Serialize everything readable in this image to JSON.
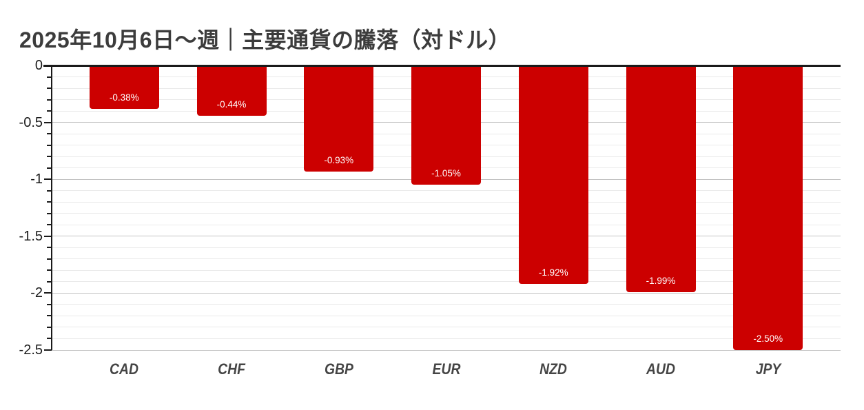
{
  "page": {
    "background": "#ffffff"
  },
  "chart_data": {
    "type": "bar",
    "title": "2025年10月6日～週｜主要通貨の騰落（対ドル）",
    "categories": [
      "CAD",
      "CHF",
      "GBP",
      "EUR",
      "NZD",
      "AUD",
      "JPY"
    ],
    "values": [
      -0.38,
      -0.44,
      -0.93,
      -1.05,
      -1.92,
      -1.99,
      -2.5
    ],
    "bar_labels": [
      "-0.38%",
      "-0.44%",
      "-0.93%",
      "-1.05%",
      "-1.92%",
      "-1.99%",
      "-2.50%"
    ],
    "xlabel": "",
    "ylabel": "",
    "ylim": [
      -2.5,
      0
    ],
    "y_major_ticks": [
      0,
      -0.5,
      -1,
      -1.5,
      -2,
      -2.5
    ],
    "y_tick_labels": [
      "0",
      "-0.5",
      "-1",
      "-1.5",
      "-2",
      "-2.5"
    ],
    "y_minor_step": 0.1,
    "grid": "on",
    "legend": "none",
    "colors": {
      "bar": "#cc0000",
      "bar_label_text": "#ffffff",
      "title_text": "#3c3c3c",
      "axis": "#1a1a1a",
      "grid_minor": "#eaeaea",
      "grid_major": "#c3c3c3",
      "y_tick_text": "#1b1b1b",
      "x_tick_text": "#454545"
    }
  }
}
